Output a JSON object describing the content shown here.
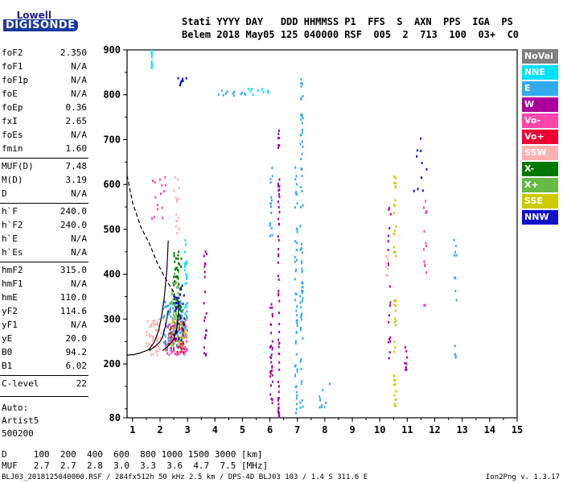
{
  "logo": {
    "top": "Lowell",
    "bottom": "DIGISONDE"
  },
  "header": {
    "line1": "Stati YYYY DAY   DDD HHMMSS P1  FFS  S  AXN  PPS  IGA  PS",
    "line2": "Belem 2018 May05 125 040000 RSF  005  2  713  100  03+  C0"
  },
  "params": [
    {
      "label": "foF2",
      "value": "2.350"
    },
    {
      "label": "foF1",
      "value": "N/A"
    },
    {
      "label": "foF1p",
      "value": "N/A"
    },
    {
      "label": "foE",
      "value": "N/A"
    },
    {
      "label": "foEp",
      "value": "0.36"
    },
    {
      "label": "fxI",
      "value": "2.65"
    },
    {
      "label": "foEs",
      "value": "N/A"
    },
    {
      "label": "fmin",
      "value": "1.60"
    },
    {
      "label": "MUF(D)",
      "value": "7.48"
    },
    {
      "label": "M(D)",
      "value": "3.19"
    },
    {
      "label": "D",
      "value": "N/A"
    },
    {
      "label": "h`F",
      "value": "240.0"
    },
    {
      "label": "h`F2",
      "value": "240.0"
    },
    {
      "label": "h`E",
      "value": "N/A"
    },
    {
      "label": "h`Es",
      "value": "N/A"
    },
    {
      "label": "hmF2",
      "value": "315.0"
    },
    {
      "label": "hmF1",
      "value": "N/A"
    },
    {
      "label": "hmE",
      "value": "110.0"
    },
    {
      "label": "yF2",
      "value": "114.6"
    },
    {
      "label": "yF1",
      "value": "N/A"
    },
    {
      "label": "yE",
      "value": "20.0"
    },
    {
      "label": "B0",
      "value": "94.2"
    },
    {
      "label": "B1",
      "value": "6.02"
    },
    {
      "label": "C-level",
      "value": "22"
    }
  ],
  "auto": [
    "Auto:",
    "Artist5",
    "500200"
  ],
  "legend": [
    {
      "label": "NoVal",
      "color": "#808080"
    },
    {
      "label": "NNE",
      "color": "#00e0ff"
    },
    {
      "label": "E",
      "color": "#33aaee"
    },
    {
      "label": "W",
      "color": "#aa0099"
    },
    {
      "label": "Vo-",
      "color": "#ff44aa"
    },
    {
      "label": "Vo+",
      "color": "#ee0033"
    },
    {
      "label": "SSW",
      "color": "#ffb0b0"
    },
    {
      "label": "X-",
      "color": "#007700"
    },
    {
      "label": "X+",
      "color": "#66bb44"
    },
    {
      "label": "SSE",
      "color": "#cccc00"
    },
    {
      "label": "NNW",
      "color": "#1111cc"
    }
  ],
  "bottom": {
    "dline": "D     100  200  400  600  800 1000 1500 3000 [km]",
    "mufline": "MUF   2.7  2.7  2.8  3.0  3.3  3.6  4.7  7.5 [MHz]"
  },
  "footer": {
    "left": "BLJ03_2018125040000.RSF / 284fx512h 50 kHz 2.5 km / DPS-4D BLJ03 103 / 1.4 S 311.6 E",
    "right": "Ion2Png v. 1.3.17"
  },
  "chart_data": {
    "type": "scatter",
    "xlim": [
      0.8,
      15
    ],
    "ylim": [
      80,
      900
    ],
    "xlabel": "",
    "ylabel": "",
    "xticks": [
      1,
      2,
      3,
      4,
      5,
      6,
      7,
      8,
      9,
      10,
      11,
      12,
      13,
      14,
      15
    ],
    "yticks": [
      80,
      200,
      300,
      400,
      500,
      600,
      700,
      800,
      900
    ],
    "grid": false,
    "legend_position": "right",
    "clusters": [
      {
        "color": "#00e0ff",
        "x": [
          1.7,
          1.7
        ],
        "y": [
          850,
          900
        ],
        "n": 14
      },
      {
        "color": "#ffb0b0",
        "x": [
          1.5,
          2.1
        ],
        "y": [
          220,
          300
        ],
        "n": 55
      },
      {
        "color": "#33aaee",
        "x": [
          2.1,
          3.0
        ],
        "y": [
          230,
          340
        ],
        "n": 120
      },
      {
        "color": "#ff44aa",
        "x": [
          2.2,
          3.0
        ],
        "y": [
          220,
          300
        ],
        "n": 70
      },
      {
        "color": "#ee0033",
        "x": [
          2.3,
          2.9
        ],
        "y": [
          225,
          290
        ],
        "n": 40
      },
      {
        "color": "#66bb44",
        "x": [
          2.4,
          2.7
        ],
        "y": [
          240,
          420
        ],
        "n": 45
      },
      {
        "color": "#007700",
        "x": [
          2.5,
          2.8
        ],
        "y": [
          300,
          460
        ],
        "n": 40
      },
      {
        "color": "#cccc00",
        "x": [
          2.4,
          3.0
        ],
        "y": [
          240,
          310
        ],
        "n": 25
      },
      {
        "color": "#1111cc",
        "x": [
          2.5,
          2.9
        ],
        "y": [
          250,
          380
        ],
        "n": 30
      },
      {
        "color": "#ff44aa",
        "x": [
          1.7,
          2.2
        ],
        "y": [
          520,
          620
        ],
        "n": 15
      },
      {
        "color": "#ffb0b0",
        "x": [
          2.5,
          2.7
        ],
        "y": [
          480,
          620
        ],
        "n": 15
      },
      {
        "color": "#00e0ff",
        "x": [
          2.9,
          3.0
        ],
        "y": [
          320,
          480
        ],
        "n": 20
      },
      {
        "color": "#1111cc",
        "x": [
          2.5,
          3.0
        ],
        "y": [
          820,
          840
        ],
        "n": 8
      },
      {
        "color": "#33aaee",
        "x": [
          4.0,
          5.2
        ],
        "y": [
          795,
          810
        ],
        "n": 12
      },
      {
        "color": "#00e0ff",
        "x": [
          5.2,
          6.0
        ],
        "y": [
          800,
          815
        ],
        "n": 10
      },
      {
        "color": "#aa0099",
        "x": [
          3.6,
          3.7
        ],
        "y": [
          200,
          460
        ],
        "n": 22
      },
      {
        "color": "#aa0099",
        "x": [
          6.0,
          6.1
        ],
        "y": [
          100,
          360
        ],
        "n": 30
      },
      {
        "color": "#aa0099",
        "x": [
          6.3,
          6.35
        ],
        "y": [
          80,
          740
        ],
        "n": 60
      },
      {
        "color": "#33aaee",
        "x": [
          6.0,
          6.1
        ],
        "y": [
          480,
          640
        ],
        "n": 15
      },
      {
        "color": "#33aaee",
        "x": [
          6.9,
          7.0
        ],
        "y": [
          90,
          640
        ],
        "n": 50
      },
      {
        "color": "#33aaee",
        "x": [
          7.1,
          7.2
        ],
        "y": [
          100,
          900
        ],
        "n": 70
      },
      {
        "color": "#cccc00",
        "x": [
          10.5,
          10.6
        ],
        "y": [
          100,
          620
        ],
        "n": 45
      },
      {
        "color": "#aa0099",
        "x": [
          10.3,
          10.4
        ],
        "y": [
          210,
          560
        ],
        "n": 20
      },
      {
        "color": "#ff44aa",
        "x": [
          11.6,
          11.7
        ],
        "y": [
          330,
          580
        ],
        "n": 15
      },
      {
        "color": "#ffb0b0",
        "x": [
          10.2,
          10.3
        ],
        "y": [
          390,
          460
        ],
        "n": 8
      },
      {
        "color": "#aa0099",
        "x": [
          10.9,
          11.0
        ],
        "y": [
          185,
          240
        ],
        "n": 8
      },
      {
        "color": "#33aaee",
        "x": [
          12.7,
          12.8
        ],
        "y": [
          210,
          480
        ],
        "n": 14
      },
      {
        "color": "#1111cc",
        "x": [
          11.2,
          11.8
        ],
        "y": [
          560,
          720
        ],
        "n": 10
      },
      {
        "color": "#33aaee",
        "x": [
          7.8,
          8.2
        ],
        "y": [
          80,
          160
        ],
        "n": 10
      }
    ],
    "curves": [
      {
        "style": "dashed",
        "x": [
          0.8,
          1.0,
          1.3,
          1.6,
          1.9,
          2.2,
          2.5
        ],
        "y": [
          620,
          560,
          505,
          470,
          425,
          390,
          360
        ]
      },
      {
        "style": "solid",
        "x": [
          1.0,
          1.3,
          1.6,
          1.8,
          1.95,
          2.05,
          2.15,
          2.25,
          2.3
        ],
        "y": [
          220,
          225,
          232,
          250,
          275,
          305,
          345,
          410,
          475
        ]
      },
      {
        "style": "solid",
        "x": [
          1.6,
          1.8,
          2.0,
          2.1,
          2.2,
          2.3
        ],
        "y": [
          230,
          238,
          250,
          262,
          285,
          320
        ]
      },
      {
        "style": "solid",
        "x": [
          0.8,
          0.9,
          1.0
        ],
        "y": [
          220,
          220,
          221
        ]
      },
      {
        "style": "solid",
        "x": [
          2.1,
          2.3,
          2.5,
          2.6,
          2.65,
          2.7
        ],
        "y": [
          230,
          240,
          255,
          275,
          300,
          340
        ]
      }
    ]
  }
}
